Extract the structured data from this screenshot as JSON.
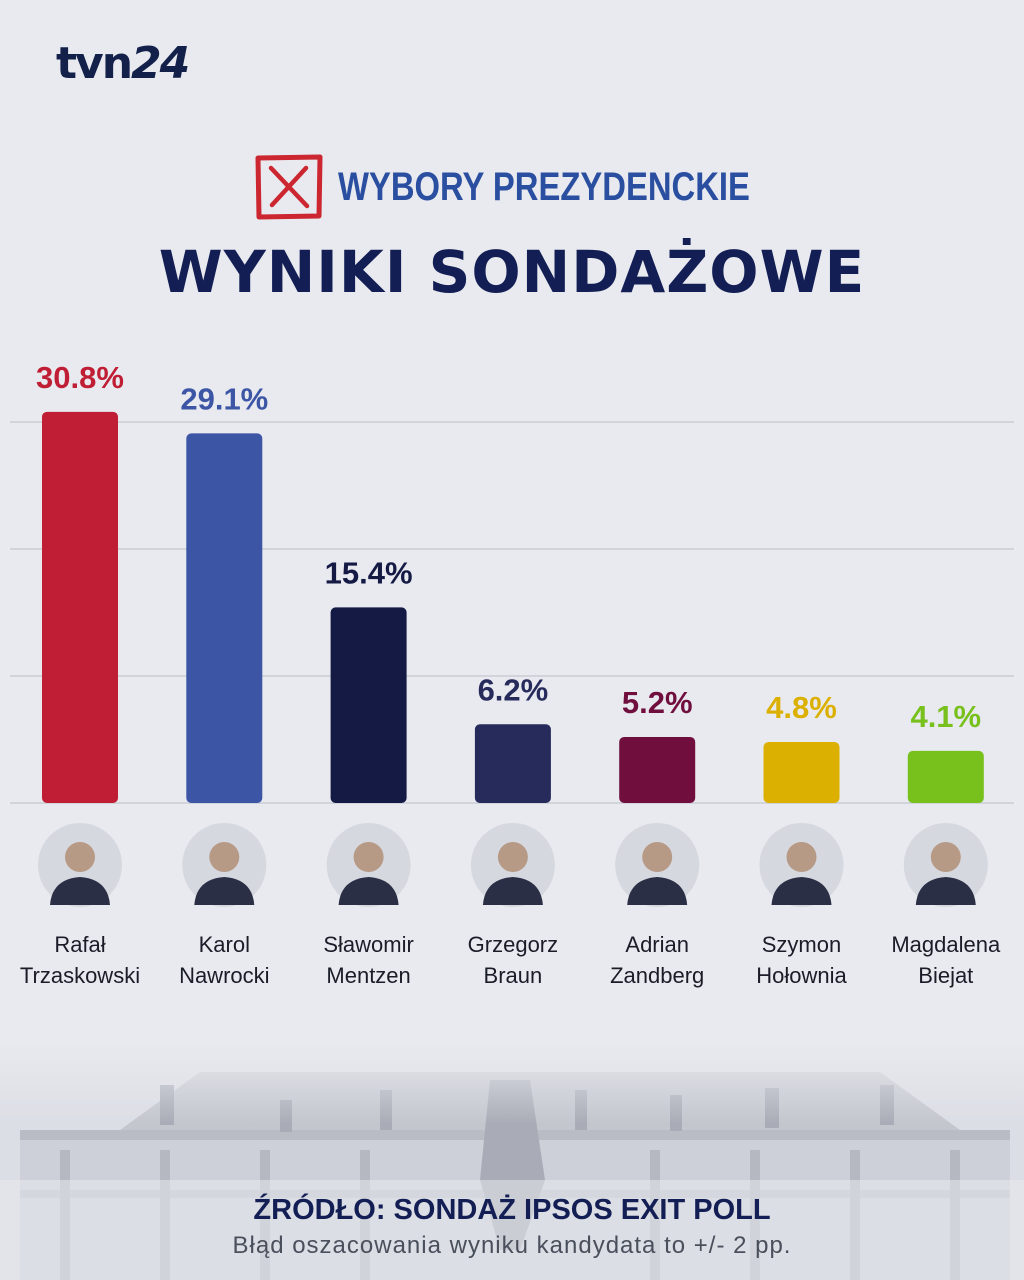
{
  "brand": {
    "logo_text": "tvn",
    "logo_num": "24"
  },
  "header": {
    "kicker": "WYBORY PREZYDENCKIE",
    "title": "WYNIKI SONDAŻOWE"
  },
  "colors": {
    "navy": "#131e54",
    "kicker_blue": "#2b4fa0",
    "ballot_red": "#cc2630"
  },
  "chart_data": {
    "type": "bar",
    "categories": [
      "Rafał Trzaskowski",
      "Karol Nawrocki",
      "Sławomir Mentzen",
      "Grzegorz Braun",
      "Adrian Zandberg",
      "Szymon Hołownia",
      "Magdalena Biejat"
    ],
    "first_names": [
      "Rafał",
      "Karol",
      "Sławomir",
      "Grzegorz",
      "Adrian",
      "Szymon",
      "Magdalena"
    ],
    "last_names": [
      "Trzaskowski",
      "Nawrocki",
      "Mentzen",
      "Braun",
      "Zandberg",
      "Hołownia",
      "Biejat"
    ],
    "values": [
      30.8,
      29.1,
      15.4,
      6.2,
      5.2,
      4.8,
      4.1
    ],
    "value_labels": [
      "30.8%",
      "29.1%",
      "15.4%",
      "6.2%",
      "5.2%",
      "4.8%",
      "4.1%"
    ],
    "colors": [
      "#bf1e35",
      "#3c55a5",
      "#151a45",
      "#262b5c",
      "#700f3e",
      "#dcb000",
      "#78c01c"
    ],
    "label_colors": [
      "#bf1e35",
      "#3c55a5",
      "#151a45",
      "#262b5c",
      "#700f3e",
      "#dcb000",
      "#78c01c"
    ],
    "title": "WYNIKI SONDAŻOWE",
    "xlabel": "",
    "ylabel": "",
    "ylim": [
      0,
      30
    ],
    "grid": true,
    "legend": "none"
  },
  "footer": {
    "source": "ŹRÓDŁO: SONDAŻ IPSOS EXIT POLL",
    "note": "Błąd oszacowania wyniku kandydata to +/- 2 pp."
  }
}
